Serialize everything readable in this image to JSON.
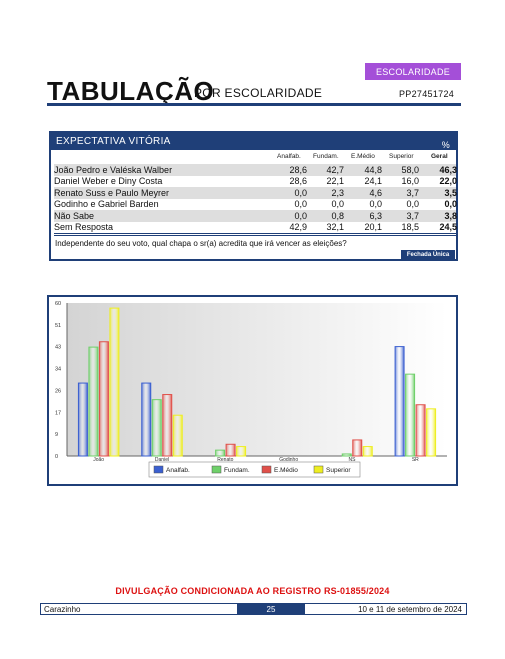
{
  "header": {
    "badge": "ESCOLARIDADE",
    "title": "TABULAÇÃO",
    "subtitle": "POR ESCOLARIDADE",
    "code": "PP27451724"
  },
  "table": {
    "heading": "EXPECTATIVA VITÓRIA",
    "pct_symbol": "%",
    "columns": [
      "Analfab.",
      "Fundam.",
      "E.Médio",
      "Superior",
      "Geral"
    ],
    "rows": [
      {
        "label": "João Pedro e Valéska Walber",
        "values": [
          "28,6",
          "42,7",
          "44,8",
          "58,0"
        ],
        "geral": "46,3"
      },
      {
        "label": "Daniel Weber e Diny Costa",
        "values": [
          "28,6",
          "22,1",
          "24,1",
          "16,0"
        ],
        "geral": "22,0"
      },
      {
        "label": "Renato Suss e Paulo Meyrer",
        "values": [
          "0,0",
          "2,3",
          "4,6",
          "3,7"
        ],
        "geral": "3,5"
      },
      {
        "label": "Godinho e Gabriel Barden",
        "values": [
          "0,0",
          "0,0",
          "0,0",
          "0,0"
        ],
        "geral": "0,0"
      },
      {
        "label": "Não Sabe",
        "values": [
          "0,0",
          "0,8",
          "6,3",
          "3,7"
        ],
        "geral": "3,8"
      },
      {
        "label": "Sem Resposta",
        "values": [
          "42,9",
          "32,1",
          "20,1",
          "18,5"
        ],
        "geral": "24,5"
      }
    ],
    "question": "Independente do seu voto, qual chapa o sr(a) acredita que irá vencer as eleições?",
    "type_label": "Fechada Única"
  },
  "chart_data": {
    "type": "bar",
    "categories": [
      "João",
      "Daniel",
      "Renato",
      "Godinho",
      "NS",
      "SR"
    ],
    "series": [
      {
        "name": "Analfab.",
        "color": "#3a5fd0",
        "values": [
          28.6,
          28.6,
          0.0,
          0.0,
          0.0,
          42.9
        ]
      },
      {
        "name": "Fundam.",
        "color": "#6fd06a",
        "values": [
          42.7,
          22.1,
          2.3,
          0.0,
          0.8,
          32.1
        ]
      },
      {
        "name": "E.Médio",
        "color": "#e0504a",
        "values": [
          44.8,
          24.1,
          4.6,
          0.0,
          6.3,
          20.1
        ]
      },
      {
        "name": "Superior",
        "color": "#eeee22",
        "values": [
          58.0,
          16.0,
          3.7,
          0.0,
          3.7,
          18.5
        ]
      }
    ],
    "yticks": [
      "60",
      "51",
      "43",
      "34",
      "26",
      "17",
      "9",
      "0"
    ],
    "ylim": [
      0,
      60
    ],
    "grid": false,
    "legend": "bottom"
  },
  "footer": {
    "disclaimer": "DIVULGAÇÃO CONDICIONADA AO REGISTRO RS-01855/2024",
    "city": "Carazinho",
    "page": "25",
    "date": "10 e 11 de setembro de 2024"
  },
  "colors": {
    "navy": "#1f3f78",
    "purple": "#a44fd8",
    "disclaimer_red": "#dd1111"
  }
}
